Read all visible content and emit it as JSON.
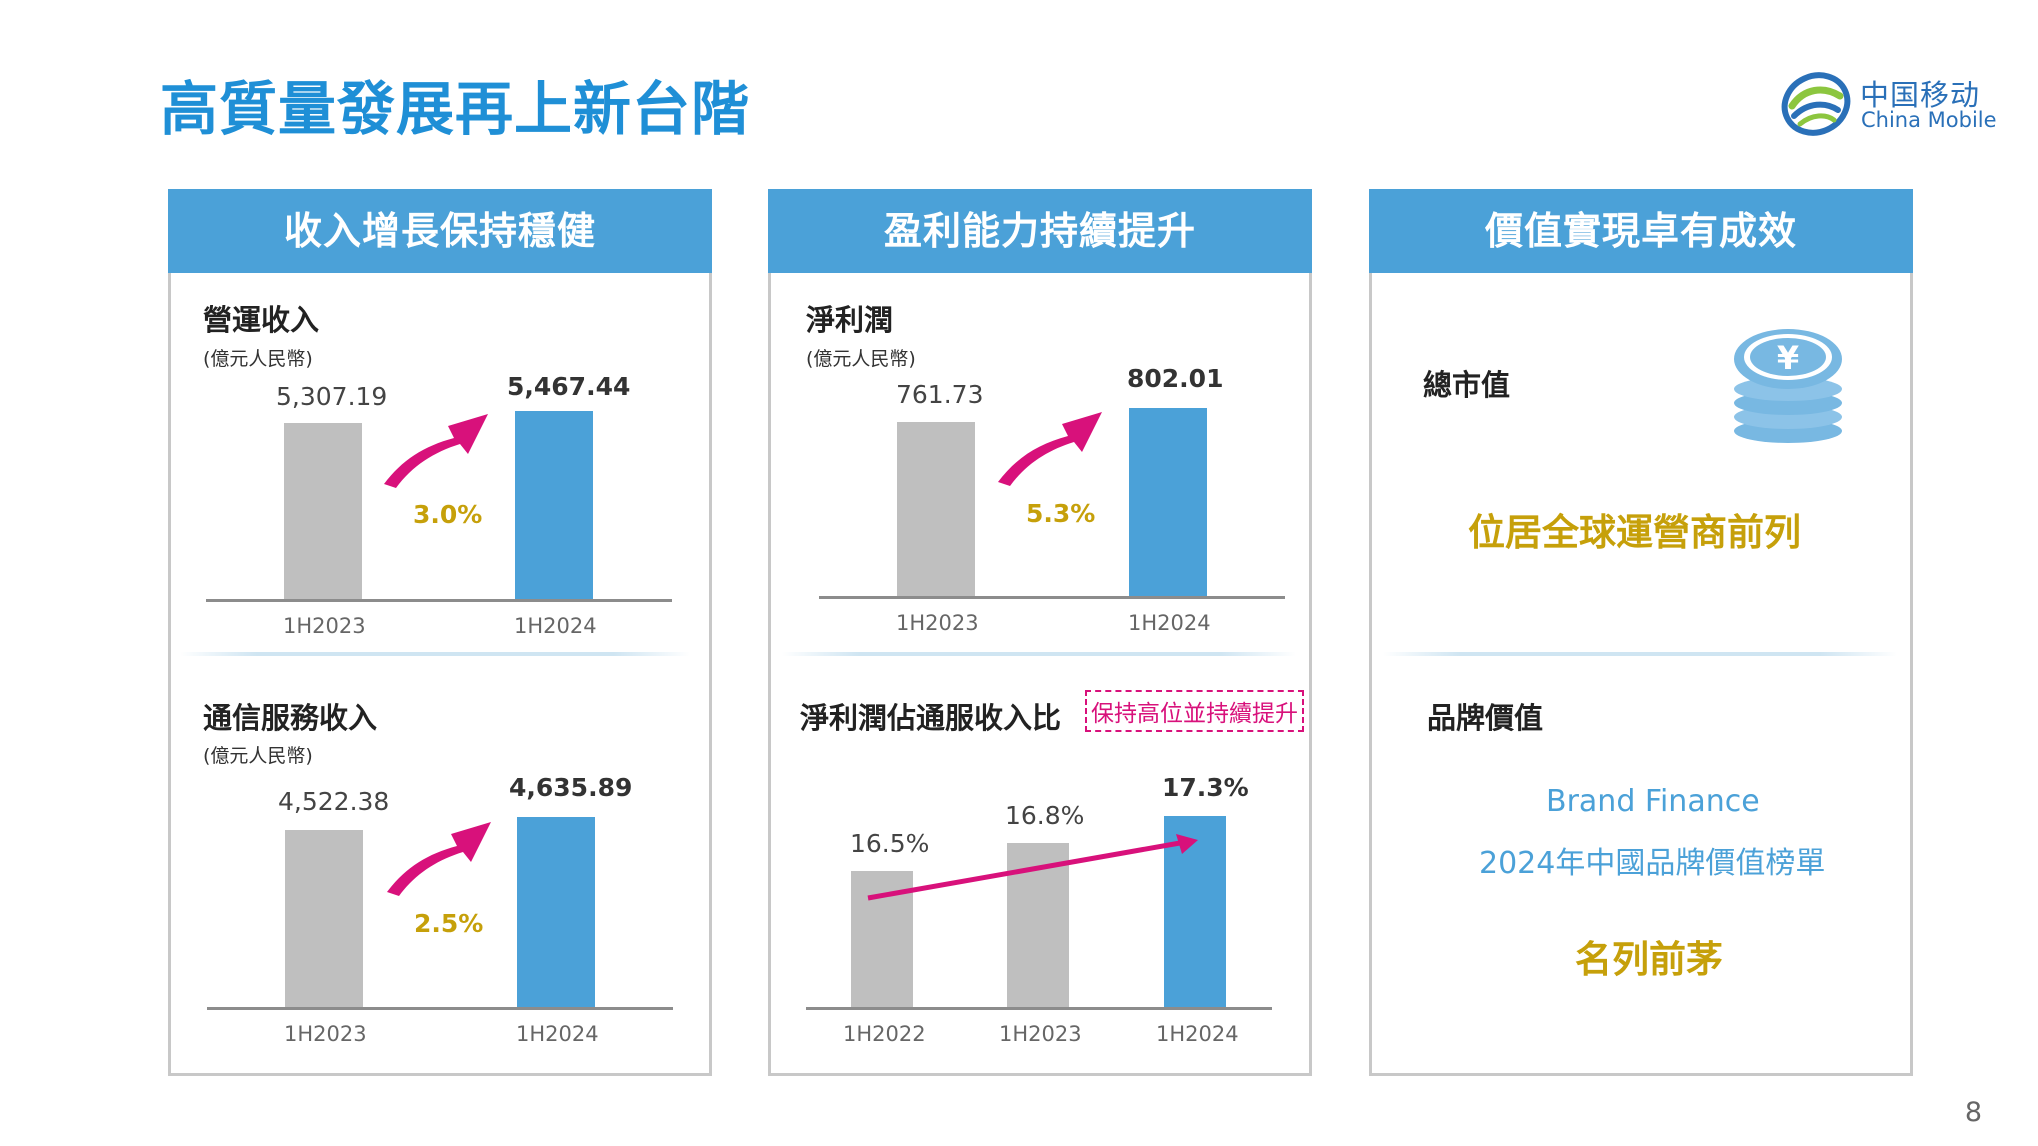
{
  "title": "高質量發展再上新台階",
  "logo": {
    "cn": "中国移动",
    "en": "China Mobile"
  },
  "colors": {
    "title": "#1f8fd6",
    "header": "#4ba1d8",
    "gray_bar": "#bfbfbf",
    "blue_bar": "#4ba1d8",
    "growth": "#c6a00a",
    "arrow": "#d8117b"
  },
  "panels": [
    {
      "header": "收入增長保持穩健",
      "metric1": {
        "title": "營運收入",
        "unit": "(億元人民幣)",
        "prev_value": "5,307.19",
        "curr_value": "5,467.44",
        "growth": "3.0%",
        "prev_label": "1H2023",
        "curr_label": "1H2024"
      },
      "metric2": {
        "title": "通信服務收入",
        "unit": "(億元人民幣)",
        "prev_value": "4,522.38",
        "curr_value": "4,635.89",
        "growth": "2.5%",
        "prev_label": "1H2023",
        "curr_label": "1H2024"
      }
    },
    {
      "header": "盈利能力持續提升",
      "metric1": {
        "title": "淨利潤",
        "unit": "(億元人民幣)",
        "prev_value": "761.73",
        "curr_value": "802.01",
        "growth": "5.3%",
        "prev_label": "1H2023",
        "curr_label": "1H2024"
      },
      "metric2": {
        "title": "淨利潤佔通服收入比",
        "tag": "保持高位並持續提升",
        "values": [
          "16.5%",
          "16.8%",
          "17.3%"
        ],
        "labels": [
          "1H2022",
          "1H2023",
          "1H2024"
        ]
      }
    },
    {
      "header": "價值實現卓有成效",
      "metric1": {
        "title": "總市值",
        "icon": "yen-coin-stack-icon",
        "statement": "位居全球運營商前列"
      },
      "metric2": {
        "title": "品牌價值",
        "line1": "Brand Finance",
        "line2": "2024年中國品牌價值榜單",
        "statement": "名列前茅"
      }
    }
  ],
  "chart_data": [
    {
      "type": "bar",
      "title": "營運收入",
      "unit": "億元人民幣",
      "categories": [
        "1H2023",
        "1H2024"
      ],
      "values": [
        5307.19,
        5467.44
      ],
      "growth": "3.0%"
    },
    {
      "type": "bar",
      "title": "通信服務收入",
      "unit": "億元人民幣",
      "categories": [
        "1H2023",
        "1H2024"
      ],
      "values": [
        4522.38,
        4635.89
      ],
      "growth": "2.5%"
    },
    {
      "type": "bar",
      "title": "淨利潤",
      "unit": "億元人民幣",
      "categories": [
        "1H2023",
        "1H2024"
      ],
      "values": [
        761.73,
        802.01
      ],
      "growth": "5.3%"
    },
    {
      "type": "bar",
      "title": "淨利潤佔通服收入比",
      "categories": [
        "1H2022",
        "1H2023",
        "1H2024"
      ],
      "values": [
        16.5,
        16.8,
        17.3
      ]
    }
  ],
  "page_number": "8"
}
